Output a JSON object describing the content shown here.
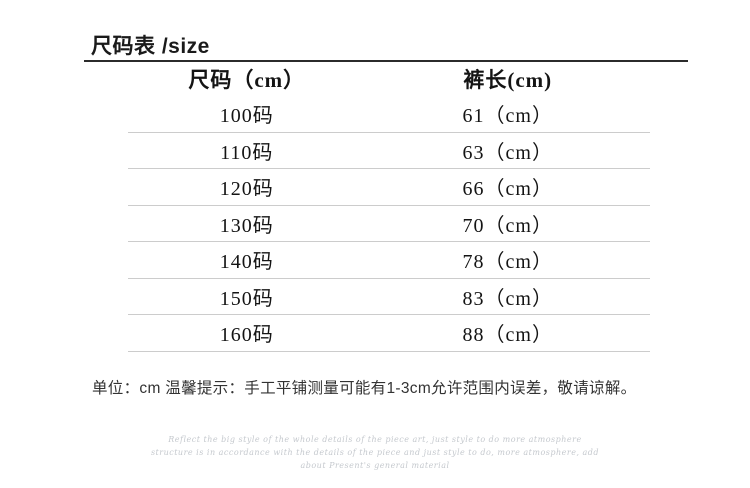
{
  "title": "尺码表 /size",
  "table": {
    "headers": [
      "尺码（cm）",
      "裤长(cm)"
    ],
    "rows": [
      {
        "size": "100码",
        "length": "61（cm）"
      },
      {
        "size": "110码",
        "length": "63（cm）"
      },
      {
        "size": "120码",
        "length": "66（cm）"
      },
      {
        "size": "130码",
        "length": "70（cm）"
      },
      {
        "size": "140码",
        "length": "78（cm）"
      },
      {
        "size": "150码",
        "length": "83（cm）"
      },
      {
        "size": "160码",
        "length": "88（cm）"
      }
    ]
  },
  "footer_note": "单位：cm  温馨提示：手工平铺测量可能有1-3cm允许范围内误差，敬请谅解。",
  "watermark_lines": [
    "Reflect the big style of the whole details of the piece art, just style to do  more atmosphere",
    "structure is in accordance with the details of the piece and just style to do, more atmosphere, add",
    "about Present's general material"
  ],
  "colors": {
    "background": "#ffffff",
    "text": "#1a1a1a",
    "heavy_rule": "#2b2b2b",
    "light_rule": "#cccccc",
    "footer_text": "#333333",
    "watermark": "#c5c9ce"
  }
}
